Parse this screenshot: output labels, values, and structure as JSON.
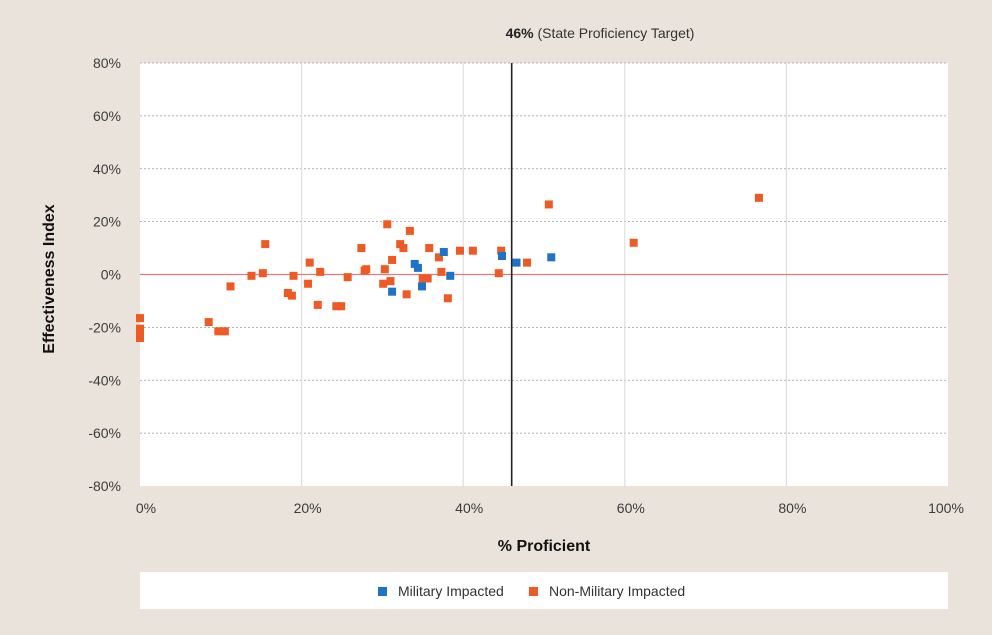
{
  "chart_data": {
    "type": "scatter",
    "xlabel": "% Proficient",
    "ylabel": "Effectiveness Index",
    "xlim": [
      0,
      100
    ],
    "ylim": [
      -80,
      80
    ],
    "x_ticks": [
      "0%",
      "20%",
      "40%",
      "60%",
      "80%",
      "100%"
    ],
    "y_ticks": [
      "80%",
      "60%",
      "40%",
      "20%",
      "0%",
      "-20%",
      "-40%",
      "-60%",
      "-80%"
    ],
    "grid": true,
    "reference_line": {
      "x": 46,
      "label_bold": "46%",
      "label_rest": "(State Proficiency Target)"
    },
    "zero_line": {
      "y": 0,
      "color": "#e07c7c"
    },
    "legend_placement": "bottom",
    "series": [
      {
        "name": "Military Impacted",
        "color": "#1f73c7",
        "points": [
          [
            31.2,
            -6.5
          ],
          [
            34.0,
            4.0
          ],
          [
            34.4,
            2.5
          ],
          [
            34.9,
            -4.5
          ],
          [
            37.6,
            8.5
          ],
          [
            38.4,
            -0.5
          ],
          [
            44.8,
            7.0
          ],
          [
            46.6,
            4.5
          ],
          [
            50.9,
            6.5
          ]
        ]
      },
      {
        "name": "Non-Military Impacted",
        "color": "#ef5a24",
        "points": [
          [
            0.0,
            -16.5
          ],
          [
            0.0,
            -20.5
          ],
          [
            0.0,
            -22.5
          ],
          [
            0.0,
            -24.0
          ],
          [
            8.5,
            -18.0
          ],
          [
            9.7,
            -21.5
          ],
          [
            10.5,
            -21.5
          ],
          [
            11.2,
            -4.5
          ],
          [
            13.8,
            -0.5
          ],
          [
            15.2,
            0.5
          ],
          [
            15.5,
            11.5
          ],
          [
            18.3,
            -7.0
          ],
          [
            18.8,
            -8.0
          ],
          [
            19.0,
            -0.5
          ],
          [
            20.8,
            -3.5
          ],
          [
            21.0,
            4.5
          ],
          [
            22.0,
            -11.5
          ],
          [
            22.3,
            1.0
          ],
          [
            24.3,
            -12.0
          ],
          [
            24.9,
            -12.0
          ],
          [
            25.7,
            -1.0
          ],
          [
            27.4,
            10.0
          ],
          [
            27.8,
            1.5
          ],
          [
            28.0,
            2.0
          ],
          [
            30.1,
            -3.5
          ],
          [
            30.3,
            2.0
          ],
          [
            30.6,
            19.0
          ],
          [
            31.0,
            -2.5
          ],
          [
            31.2,
            5.5
          ],
          [
            32.2,
            11.5
          ],
          [
            32.6,
            10.0
          ],
          [
            33.0,
            -7.5
          ],
          [
            33.4,
            16.5
          ],
          [
            35.0,
            -1.5
          ],
          [
            35.6,
            -1.5
          ],
          [
            35.8,
            10.0
          ],
          [
            37.0,
            6.5
          ],
          [
            37.3,
            1.0
          ],
          [
            38.1,
            -9.0
          ],
          [
            39.6,
            9.0
          ],
          [
            41.2,
            9.0
          ],
          [
            44.4,
            0.5
          ],
          [
            44.7,
            9.0
          ],
          [
            47.9,
            4.5
          ],
          [
            50.6,
            26.5
          ],
          [
            61.1,
            12.0
          ],
          [
            76.6,
            29.0
          ]
        ]
      }
    ]
  }
}
